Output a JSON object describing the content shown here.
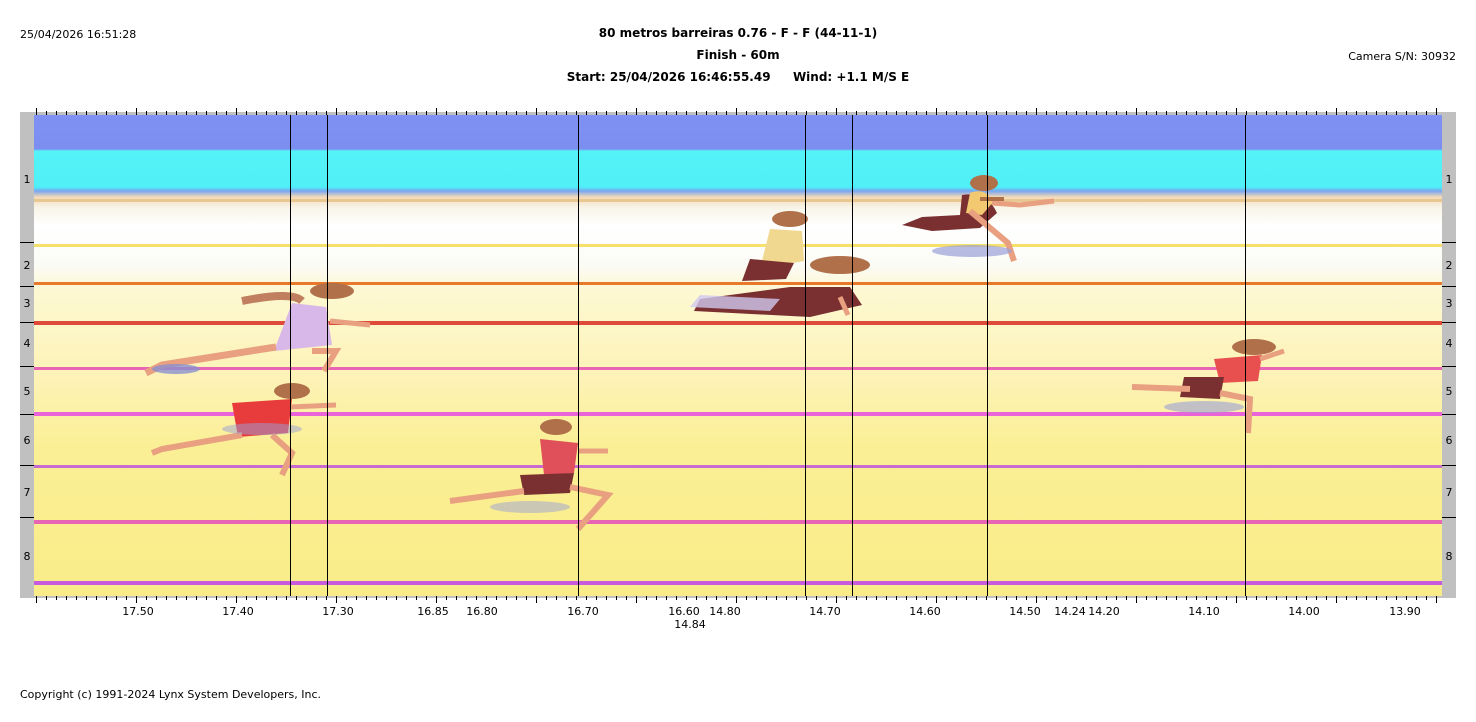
{
  "header": {
    "timestamp": "25/04/2026 16:51:28",
    "event_title": "80 metros barreiras 0.76 - F - F (44-11-1)",
    "finish_line": "Finish - 60m",
    "start_info": "Start: 25/04/2026 16:46:55.49",
    "wind_info": "Wind: +1.1 M/S E",
    "camera": "Camera S/N: 30932"
  },
  "lanes": [
    "1",
    "2",
    "3",
    "4",
    "5",
    "6",
    "7",
    "8"
  ],
  "time_ticks": [
    {
      "label": "17.50",
      "row": 1
    },
    {
      "label": "17.40",
      "row": 1
    },
    {
      "label": "17.30",
      "row": 1
    },
    {
      "label": "16.85",
      "row": 1
    },
    {
      "label": "16.80",
      "row": 1
    },
    {
      "label": "16.70",
      "row": 1
    },
    {
      "label": "16.60",
      "row": 1
    },
    {
      "label": "14.84",
      "row": 2
    },
    {
      "label": "14.80",
      "row": 1
    },
    {
      "label": "14.70",
      "row": 1
    },
    {
      "label": "14.60",
      "row": 1
    },
    {
      "label": "14.50",
      "row": 1
    },
    {
      "label": "14.24",
      "row": 1
    },
    {
      "label": "14.20",
      "row": 1
    },
    {
      "label": "14.10",
      "row": 1
    },
    {
      "label": "14.00",
      "row": 1
    },
    {
      "label": "13.90",
      "row": 1
    }
  ],
  "colors": {
    "lane_line_orange": "#e8782a",
    "lane_line_red": "#e04a3a",
    "lane_line_pink": "#e864b4",
    "lane_line_magenta": "#d05ac8",
    "sky_blue": "#7f91f2",
    "cyan": "#55f3f8"
  },
  "footer": {
    "copyright": "Copyright (c) 1991-2024 Lynx System Developers, Inc."
  }
}
